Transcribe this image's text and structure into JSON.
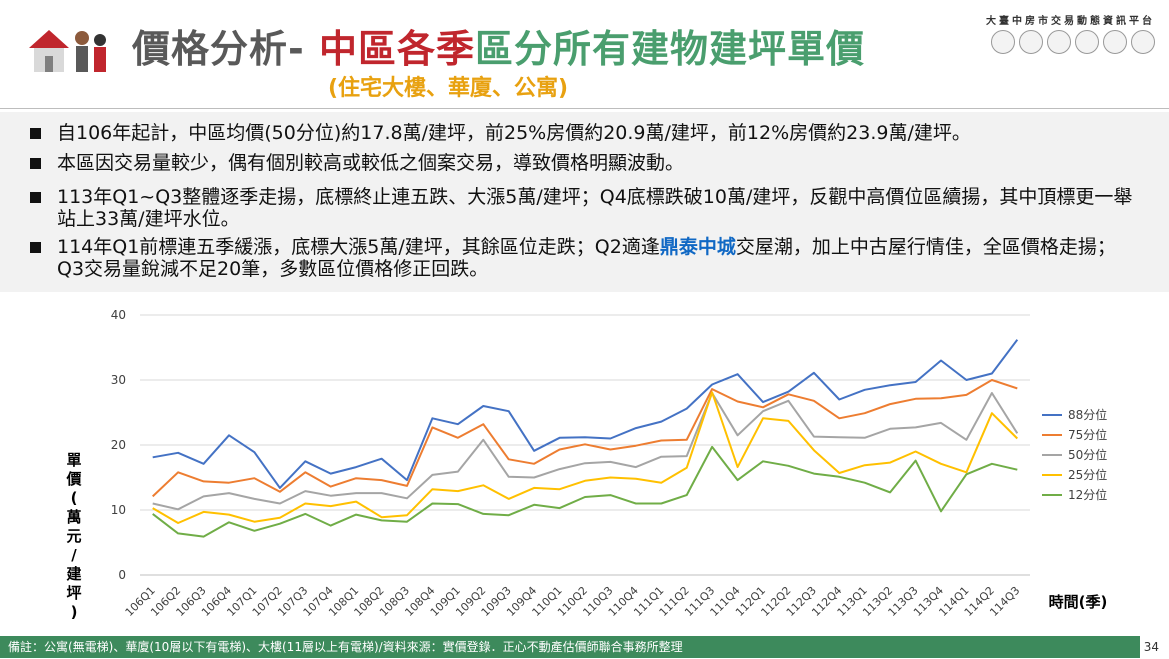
{
  "header": {
    "title_part1": "價格分析- ",
    "title_part2": "中區各季",
    "title_part3": "區分所有建物建坪單價",
    "subtitle": "(住宅大樓、華廈、公寓)",
    "brand": "大臺中房市交易動態資訊平台"
  },
  "bullets": [
    {
      "text": "自106年起計，中區均價(50分位)約17.8萬/建坪，前25%房價約20.9萬/建坪，前12%房價約23.9萬/建坪。"
    },
    {
      "text": "本區因交易量較少，偶有個別較高或較低之個案交易，導致價格明顯波動。"
    },
    {
      "text": "113年Q1~Q3整體逐季走揚，底標終止連五跌、大漲5萬/建坪；Q4底標跌破10萬/建坪，反觀中高價位區續揚，其中頂標更一舉站上33萬/建坪水位。"
    },
    {
      "text_before": "114年Q1前標連五季緩漲，底標大漲5萬/建坪，其餘區位走跌；Q2適逢",
      "highlight": "鼎泰中城",
      "text_after": "交屋潮，加上中古屋行情佳，全區價格走揚；Q3交易量銳減不足20筆，多數區位價格修正回跌。"
    }
  ],
  "chart_data": {
    "type": "line",
    "ylabel": "單價(萬元/建坪)",
    "xlabel": "時間(季)",
    "ylim": [
      0,
      40
    ],
    "yticks": [
      0,
      10,
      20,
      30,
      40
    ],
    "grid": true,
    "legend": "right",
    "categories": [
      "106Q1",
      "106Q2",
      "106Q3",
      "106Q4",
      "107Q1",
      "107Q2",
      "107Q3",
      "107Q4",
      "108Q1",
      "108Q2",
      "108Q3",
      "108Q4",
      "109Q1",
      "109Q2",
      "109Q3",
      "109Q4",
      "110Q1",
      "110Q2",
      "110Q3",
      "110Q4",
      "111Q1",
      "111Q2",
      "111Q3",
      "111Q4",
      "112Q1",
      "112Q2",
      "112Q3",
      "112Q4",
      "113Q1",
      "113Q2",
      "113Q3",
      "113Q4",
      "114Q1",
      "114Q2",
      "114Q3"
    ],
    "series": [
      {
        "name": "88分位",
        "color": "#4472c4",
        "values": [
          18.1,
          18.8,
          17.1,
          21.5,
          18.9,
          13.4,
          17.5,
          15.6,
          16.6,
          17.9,
          14.6,
          24.1,
          23.2,
          26.0,
          25.2,
          19.1,
          21.1,
          21.2,
          21.0,
          22.6,
          23.6,
          25.6,
          29.3,
          30.9,
          26.6,
          28.2,
          31.1,
          27.0,
          28.5,
          29.2,
          29.7,
          33.0,
          30.0,
          31.0,
          36.2
        ]
      },
      {
        "name": "75分位",
        "color": "#ed7d31",
        "values": [
          12.1,
          15.8,
          14.4,
          14.2,
          14.9,
          12.8,
          15.8,
          13.6,
          14.9,
          14.6,
          13.7,
          22.7,
          21.1,
          23.2,
          17.8,
          17.1,
          19.3,
          20.1,
          19.3,
          19.9,
          20.7,
          20.8,
          28.6,
          26.7,
          25.8,
          27.8,
          26.8,
          24.1,
          24.9,
          26.3,
          27.1,
          27.2,
          27.7,
          30.0,
          28.7
        ]
      },
      {
        "name": "50分位",
        "color": "#a5a5a5",
        "values": [
          11.0,
          10.1,
          12.1,
          12.6,
          11.7,
          11.0,
          12.9,
          12.2,
          12.6,
          12.6,
          11.8,
          15.4,
          15.9,
          20.8,
          15.1,
          15.0,
          16.3,
          17.2,
          17.4,
          16.6,
          18.2,
          18.3,
          28.0,
          21.5,
          25.2,
          26.8,
          21.3,
          21.2,
          21.1,
          22.5,
          22.7,
          23.4,
          20.8,
          28.0,
          21.8
        ]
      },
      {
        "name": "25分位",
        "color": "#ffc000",
        "values": [
          10.3,
          8.0,
          9.7,
          9.3,
          8.2,
          8.8,
          11.0,
          10.6,
          11.3,
          8.9,
          9.2,
          13.2,
          12.9,
          13.8,
          11.7,
          13.4,
          13.2,
          14.5,
          15.0,
          14.8,
          14.2,
          16.5,
          28.1,
          16.6,
          24.1,
          23.7,
          19.2,
          15.7,
          16.9,
          17.3,
          19.0,
          17.1,
          15.8,
          24.9,
          21.0
        ]
      },
      {
        "name": "12分位",
        "color": "#70ad47",
        "values": [
          9.4,
          6.4,
          5.9,
          8.1,
          6.8,
          7.9,
          9.4,
          7.6,
          9.3,
          8.4,
          8.2,
          11.0,
          10.9,
          9.4,
          9.2,
          10.8,
          10.3,
          12.0,
          12.3,
          11.0,
          11.0,
          12.3,
          19.7,
          14.6,
          17.5,
          16.8,
          15.6,
          15.1,
          14.2,
          12.7,
          17.6,
          9.8,
          15.5,
          17.1,
          16.2
        ]
      }
    ]
  },
  "footer": {
    "note": "備註：公寓(無電梯)、華廈(10層以下有電梯)、大樓(11層以上有電梯)/資料來源：實價登錄．正心不動產估價師聯合事務所整理",
    "page": "34"
  }
}
